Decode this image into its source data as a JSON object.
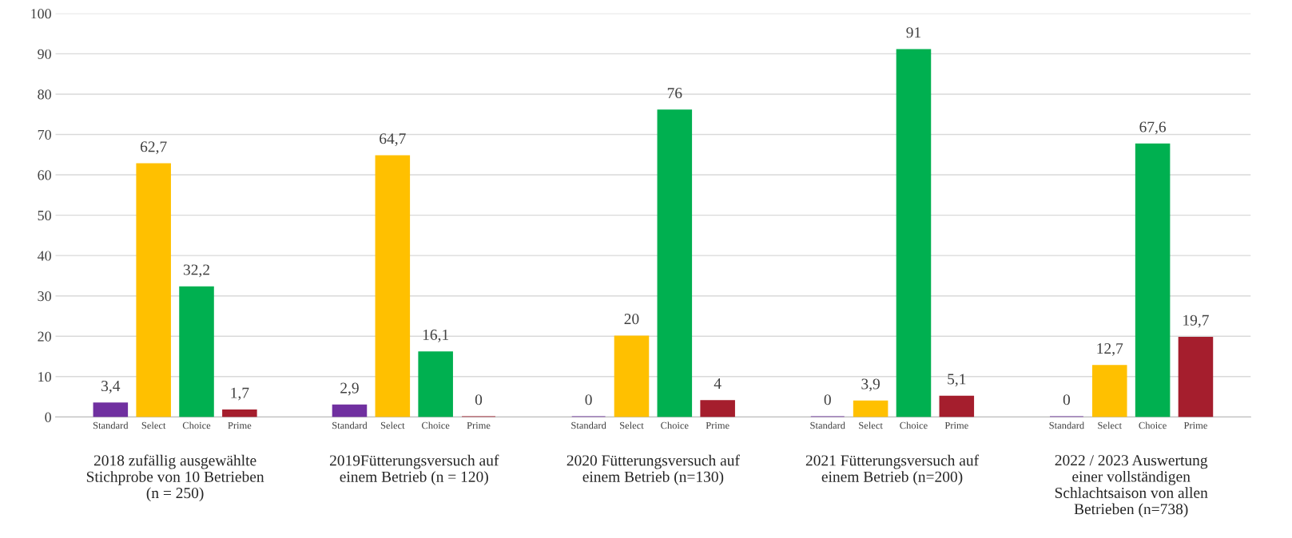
{
  "chart_data": {
    "type": "bar",
    "categories": [
      "2018 zufällig ausgewählte\nStichprobe von 10 Betrieben\n(n = 250)",
      "2019Fütterungsversuch auf\neinem Betrieb (n = 120)",
      "2020 Fütterungsversuch auf\neinem Betrieb (n=130)",
      "2021 Fütterungsversuch auf\neinem Betrieb (n=200)",
      "2022 / 2023 Auswertung\neiner vollständigen\nSchlachtsaison von allen\nBetrieben (n=738)"
    ],
    "series": [
      {
        "name": "Standard",
        "color": "#7030a0",
        "values": [
          3.4,
          2.9,
          0,
          0,
          0
        ],
        "value_labels": [
          "3,4",
          "2,9",
          "0",
          "0",
          "0"
        ]
      },
      {
        "name": "Select",
        "color": "#ffc000",
        "values": [
          62.7,
          64.7,
          20,
          3.9,
          12.7
        ],
        "value_labels": [
          "62,7",
          "64,7",
          "20",
          "3,9",
          "12,7"
        ]
      },
      {
        "name": "Choice",
        "color": "#00b050",
        "values": [
          32.2,
          16.1,
          76,
          91,
          67.6
        ],
        "value_labels": [
          "32,2",
          "16,1",
          "76",
          "91",
          "67,6"
        ]
      },
      {
        "name": "Prime",
        "color": "#a51e2d",
        "values": [
          1.7,
          0,
          4,
          5.1,
          19.7
        ],
        "value_labels": [
          "1,7",
          "0",
          "4",
          "5,1",
          "19,7"
        ]
      }
    ],
    "ylim": [
      0,
      100
    ],
    "yticks": [
      0,
      10,
      20,
      30,
      40,
      50,
      60,
      70,
      80,
      90,
      100
    ],
    "grid": "y",
    "legend": false
  }
}
